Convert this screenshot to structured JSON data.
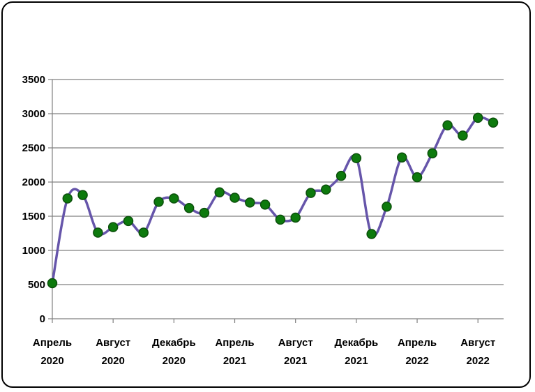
{
  "chart_data": {
    "type": "line",
    "title": "",
    "xlabel": "",
    "ylabel": "",
    "ylim": [
      0,
      3500
    ],
    "yticks": [
      0,
      500,
      1000,
      1500,
      2000,
      2500,
      3000,
      3500
    ],
    "grid": true,
    "x": [
      "2020-04",
      "2020-05",
      "2020-06",
      "2020-07",
      "2020-08",
      "2020-09",
      "2020-10",
      "2020-11",
      "2020-12",
      "2021-01",
      "2021-02",
      "2021-03",
      "2021-04",
      "2021-05",
      "2021-06",
      "2021-07",
      "2021-08",
      "2021-09",
      "2021-10",
      "2021-11",
      "2021-12",
      "2022-01",
      "2022-02",
      "2022-03",
      "2022-04",
      "2022-05",
      "2022-06",
      "2022-07",
      "2022-08",
      "2022-09"
    ],
    "series": [
      {
        "values": [
          520,
          1760,
          1810,
          1260,
          1340,
          1430,
          1260,
          1710,
          1760,
          1620,
          1550,
          1850,
          1770,
          1700,
          1670,
          1450,
          1480,
          1840,
          1890,
          2090,
          2350,
          1240,
          1640,
          2360,
          2070,
          2420,
          2830,
          2680,
          2940,
          2870
        ]
      }
    ],
    "xtick_labels": [
      {
        "index": 0,
        "month": "Апрель",
        "year": "2020"
      },
      {
        "index": 4,
        "month": "Август",
        "year": "2020"
      },
      {
        "index": 8,
        "month": "Декабрь",
        "year": "2020"
      },
      {
        "index": 12,
        "month": "Апрель",
        "year": "2021"
      },
      {
        "index": 16,
        "month": "Август",
        "year": "2021"
      },
      {
        "index": 20,
        "month": "Декабрь",
        "year": "2021"
      },
      {
        "index": 24,
        "month": "Апрель",
        "year": "2022"
      },
      {
        "index": 28,
        "month": "Август",
        "year": "2022"
      }
    ],
    "colors": {
      "line": "#6655aa",
      "marker": "#0d7a0d",
      "marker_edge": "#0b4f0b",
      "grid": "#808080"
    }
  }
}
